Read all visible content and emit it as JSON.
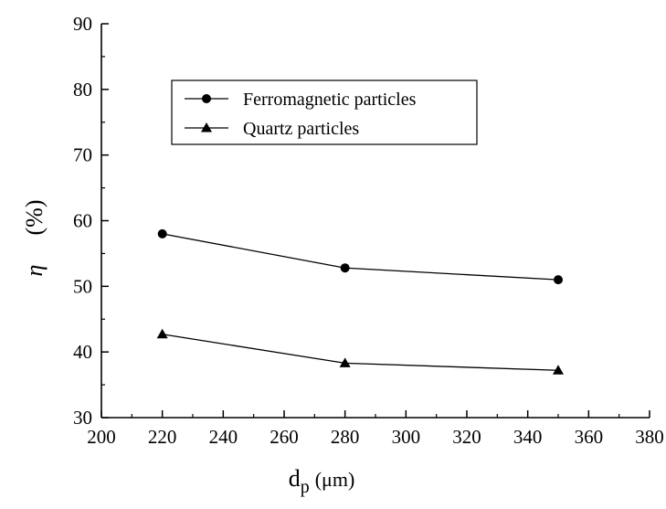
{
  "chart_data": {
    "type": "line",
    "title": "",
    "xlabel": "d",
    "xlabel_subscript": "p",
    "xlabel_unit": "(μm)",
    "ylabel": "η",
    "ylabel_unit": "(%)",
    "xlim": [
      200,
      380
    ],
    "ylim": [
      30,
      90
    ],
    "xticks": [
      200,
      220,
      240,
      260,
      280,
      300,
      320,
      340,
      360,
      380
    ],
    "yticks": [
      30,
      40,
      50,
      60,
      70,
      80,
      90
    ],
    "grid": false,
    "legend_position": "top-left",
    "colors": {
      "line": "#000000",
      "axis": "#000000",
      "background": "#ffffff"
    },
    "series": [
      {
        "name": "Ferromagnetic particles",
        "marker": "circle",
        "x": [
          220,
          280,
          350
        ],
        "y": [
          58.0,
          52.8,
          51.0
        ]
      },
      {
        "name": "Quartz particles",
        "marker": "triangle",
        "x": [
          220,
          280,
          350
        ],
        "y": [
          42.7,
          38.3,
          37.2
        ]
      }
    ]
  }
}
